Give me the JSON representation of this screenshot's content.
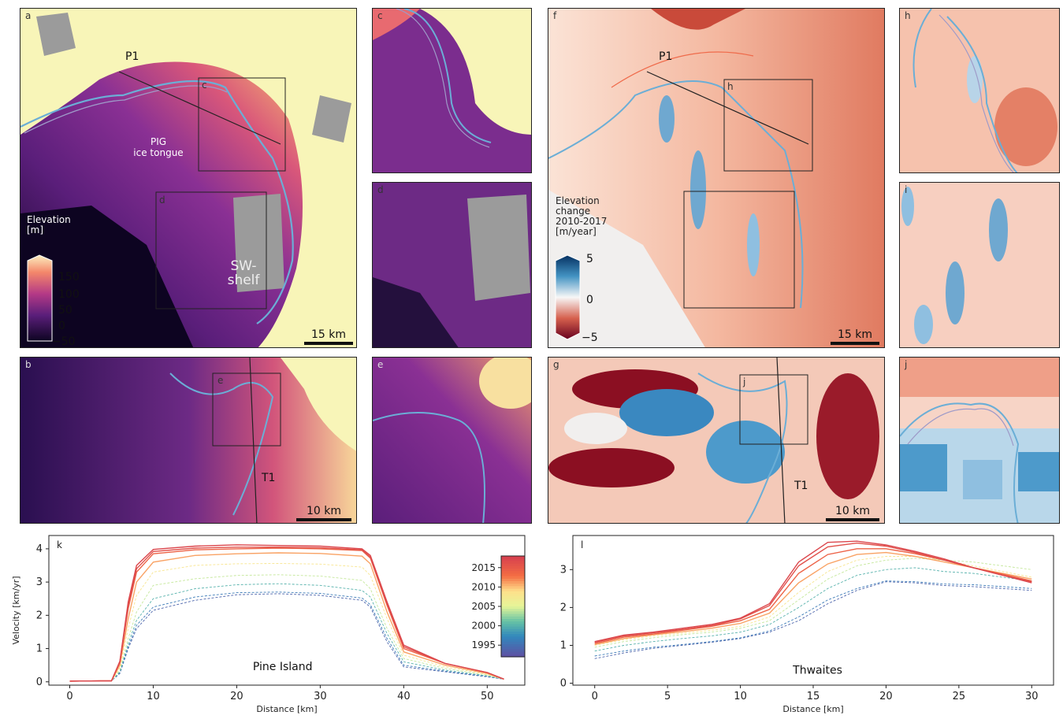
{
  "panels": {
    "a": {
      "label": "a",
      "p1": "P1",
      "pig": "PIG\nice tongue",
      "sw": "SW-\nshelf",
      "box_c": "c",
      "box_d": "d",
      "cb_title": "Elevation\n[m]",
      "cb_ticks": [
        "150",
        "100",
        "50",
        "0",
        "−50"
      ],
      "scale": "15 km"
    },
    "b": {
      "label": "b",
      "box_e": "e",
      "t1": "T1",
      "scale": "10 km"
    },
    "c": {
      "label": "c"
    },
    "d": {
      "label": "d"
    },
    "e": {
      "label": "e"
    },
    "f": {
      "label": "f",
      "p1": "P1",
      "box_h": "h",
      "cb_title": "Elevation\nchange\n2010-2017\n[m/year]",
      "cb_ticks": [
        "5",
        "0",
        "−5"
      ],
      "scale": "15 km"
    },
    "g": {
      "label": "g",
      "box_j": "j",
      "t1": "T1",
      "scale": "10 km"
    },
    "h": {
      "label": "h"
    },
    "i": {
      "label": "i"
    },
    "j": {
      "label": "j"
    }
  },
  "colors": {
    "elev_low": "#0d0421",
    "elev_mid": "#7b2d8e",
    "elev_high": "#f07847",
    "elev_top": "#f8f5b8",
    "change_pos": "#2166ac",
    "change_zero": "#f7f7f7",
    "change_neg": "#b2182b",
    "nodata": "#999999",
    "groundline_a": "#6baed6",
    "groundline_b": "#9e9ac8"
  },
  "chart_data": [
    {
      "type": "line",
      "panel_label": "k",
      "annotation": "Pine Island",
      "xlabel": "Distance [km]",
      "ylabel": "Velocity [km/yr]",
      "xlim": [
        -2.5,
        54.5
      ],
      "ylim": [
        -0.1,
        4.4
      ],
      "xticks": [
        "0",
        "10",
        "20",
        "30",
        "40",
        "50"
      ],
      "yticks": [
        "0",
        "1",
        "2",
        "3",
        "4"
      ],
      "colorbar": {
        "ticks": [
          "2015",
          "2010",
          "2005",
          "2000",
          "1995"
        ],
        "range": [
          1992,
          2018
        ]
      },
      "series": [
        {
          "year": 1994,
          "x": [
            0,
            5,
            6,
            7,
            8,
            10,
            15,
            20,
            25,
            30,
            35,
            36,
            38,
            40,
            45,
            50,
            52
          ],
          "values": [
            0.02,
            0.03,
            0.25,
            1.0,
            1.6,
            2.15,
            2.45,
            2.62,
            2.65,
            2.6,
            2.45,
            2.25,
            1.2,
            0.45,
            0.3,
            0.15,
            0.08
          ]
        },
        {
          "year": 1996,
          "x": [
            0,
            5,
            6,
            7,
            8,
            10,
            15,
            20,
            25,
            30,
            35,
            36,
            38,
            40,
            45,
            50,
            52
          ],
          "values": [
            0.02,
            0.03,
            0.27,
            1.05,
            1.7,
            2.25,
            2.55,
            2.68,
            2.7,
            2.66,
            2.52,
            2.32,
            1.3,
            0.5,
            0.32,
            0.16,
            0.08
          ]
        },
        {
          "year": 2000,
          "x": [
            0,
            5,
            6,
            7,
            8,
            10,
            15,
            20,
            25,
            30,
            35,
            36,
            38,
            40,
            45,
            50,
            52
          ],
          "values": [
            0.02,
            0.03,
            0.3,
            1.15,
            1.85,
            2.5,
            2.8,
            2.92,
            2.95,
            2.9,
            2.75,
            2.55,
            1.45,
            0.6,
            0.35,
            0.18,
            0.08
          ]
        },
        {
          "year": 2004,
          "x": [
            0,
            5,
            6,
            7,
            8,
            10,
            15,
            20,
            25,
            30,
            35,
            36,
            38,
            40,
            45,
            50,
            52
          ],
          "values": [
            0.02,
            0.03,
            0.35,
            1.3,
            2.1,
            2.9,
            3.1,
            3.2,
            3.22,
            3.18,
            3.05,
            2.8,
            1.6,
            0.7,
            0.4,
            0.2,
            0.08
          ]
        },
        {
          "year": 2008,
          "x": [
            0,
            5,
            6,
            7,
            8,
            10,
            15,
            20,
            25,
            30,
            35,
            36,
            38,
            40,
            45,
            50,
            52
          ],
          "values": [
            0.02,
            0.03,
            0.42,
            1.6,
            2.6,
            3.3,
            3.5,
            3.55,
            3.56,
            3.54,
            3.45,
            3.2,
            1.9,
            0.8,
            0.45,
            0.22,
            0.08
          ]
        },
        {
          "year": 2011,
          "x": [
            0,
            5,
            6,
            7,
            8,
            10,
            15,
            20,
            25,
            30,
            35,
            36,
            38,
            40,
            45,
            50,
            52
          ],
          "values": [
            0.02,
            0.03,
            0.5,
            1.9,
            3.0,
            3.6,
            3.8,
            3.85,
            3.88,
            3.86,
            3.78,
            3.55,
            2.1,
            0.9,
            0.5,
            0.25,
            0.08
          ]
        },
        {
          "year": 2014,
          "x": [
            0,
            5,
            6,
            7,
            8,
            10,
            15,
            20,
            25,
            30,
            35,
            36,
            38,
            40,
            45,
            50,
            52
          ],
          "values": [
            0.02,
            0.03,
            0.58,
            2.2,
            3.3,
            3.85,
            3.97,
            4.0,
            4.02,
            4.0,
            3.95,
            3.72,
            2.3,
            1.0,
            0.55,
            0.28,
            0.08
          ]
        },
        {
          "year": 2016,
          "x": [
            0,
            5,
            6,
            7,
            8,
            10,
            15,
            20,
            25,
            30,
            35,
            36,
            38,
            40,
            45,
            50,
            52
          ],
          "values": [
            0.02,
            0.03,
            0.6,
            2.3,
            3.4,
            3.92,
            4.02,
            4.05,
            4.05,
            4.03,
            3.97,
            3.75,
            2.35,
            1.05,
            0.55,
            0.28,
            0.08
          ]
        },
        {
          "year": 2017,
          "x": [
            0,
            5,
            6,
            7,
            8,
            10,
            15,
            20,
            25,
            30,
            35,
            36,
            38,
            40,
            45,
            50,
            52
          ],
          "values": [
            0.02,
            0.03,
            0.62,
            2.4,
            3.5,
            3.98,
            4.08,
            4.12,
            4.1,
            4.08,
            4.0,
            3.8,
            2.4,
            1.1,
            0.55,
            0.28,
            0.08
          ]
        }
      ]
    },
    {
      "type": "line",
      "panel_label": "l",
      "annotation": "Thwaites",
      "xlabel": "Distance [km]",
      "ylabel": "",
      "xlim": [
        -1.5,
        31.5
      ],
      "ylim": [
        -0.05,
        3.9
      ],
      "xticks": [
        "0",
        "5",
        "10",
        "15",
        "20",
        "25",
        "30"
      ],
      "yticks": [
        "0",
        "1",
        "2",
        "3"
      ],
      "series": [
        {
          "year": 1994,
          "x": [
            0,
            2,
            4,
            6,
            8,
            10,
            12,
            14,
            16,
            18,
            20,
            22,
            24,
            26,
            28,
            30
          ],
          "values": [
            0.65,
            0.8,
            0.92,
            1.0,
            1.08,
            1.18,
            1.35,
            1.65,
            2.1,
            2.45,
            2.68,
            2.65,
            2.58,
            2.55,
            2.5,
            2.45
          ]
        },
        {
          "year": 1996,
          "x": [
            0,
            2,
            4,
            6,
            8,
            10,
            12,
            14,
            16,
            18,
            20,
            22,
            24,
            26,
            28,
            30
          ],
          "values": [
            0.72,
            0.85,
            0.95,
            1.02,
            1.1,
            1.2,
            1.38,
            1.75,
            2.2,
            2.5,
            2.7,
            2.68,
            2.62,
            2.6,
            2.55,
            2.5
          ]
        },
        {
          "year": 2000,
          "x": [
            0,
            2,
            4,
            6,
            8,
            10,
            12,
            14,
            16,
            18,
            20,
            22,
            24,
            26,
            28,
            30
          ],
          "values": [
            0.85,
            1.0,
            1.1,
            1.18,
            1.25,
            1.35,
            1.55,
            2.0,
            2.5,
            2.85,
            3.0,
            3.05,
            2.95,
            2.9,
            2.8,
            2.7
          ]
        },
        {
          "year": 2004,
          "x": [
            0,
            2,
            4,
            6,
            8,
            10,
            12,
            14,
            16,
            18,
            20,
            22,
            24,
            26,
            28,
            30
          ],
          "values": [
            0.95,
            1.1,
            1.2,
            1.28,
            1.35,
            1.45,
            1.65,
            2.2,
            2.75,
            3.1,
            3.25,
            3.3,
            3.25,
            3.2,
            3.1,
            3.0
          ]
        },
        {
          "year": 2008,
          "x": [
            0,
            2,
            4,
            6,
            8,
            10,
            12,
            14,
            16,
            18,
            20,
            22,
            24,
            26,
            28,
            30
          ],
          "values": [
            1.0,
            1.15,
            1.25,
            1.32,
            1.4,
            1.5,
            1.75,
            2.4,
            2.95,
            3.25,
            3.35,
            3.35,
            3.25,
            3.1,
            2.95,
            2.8
          ]
        },
        {
          "year": 2011,
          "x": [
            0,
            2,
            4,
            6,
            8,
            10,
            12,
            14,
            16,
            18,
            20,
            22,
            24,
            26,
            28,
            30
          ],
          "values": [
            1.02,
            1.18,
            1.28,
            1.36,
            1.45,
            1.58,
            1.85,
            2.65,
            3.15,
            3.4,
            3.45,
            3.35,
            3.2,
            3.05,
            2.9,
            2.75
          ]
        },
        {
          "year": 2014,
          "x": [
            0,
            2,
            4,
            6,
            8,
            10,
            12,
            14,
            16,
            18,
            20,
            22,
            24,
            26,
            28,
            30
          ],
          "values": [
            1.05,
            1.22,
            1.3,
            1.4,
            1.5,
            1.65,
            1.95,
            2.9,
            3.4,
            3.55,
            3.55,
            3.42,
            3.25,
            3.05,
            2.88,
            2.7
          ]
        },
        {
          "year": 2016,
          "x": [
            0,
            2,
            4,
            6,
            8,
            10,
            12,
            14,
            16,
            18,
            20,
            22,
            24,
            26,
            28,
            30
          ],
          "values": [
            1.08,
            1.25,
            1.33,
            1.42,
            1.52,
            1.7,
            2.05,
            3.1,
            3.6,
            3.7,
            3.62,
            3.45,
            3.25,
            3.05,
            2.85,
            2.68
          ]
        },
        {
          "year": 2017,
          "x": [
            0,
            2,
            4,
            6,
            8,
            10,
            12,
            14,
            16,
            18,
            20,
            22,
            24,
            26,
            28,
            30
          ],
          "values": [
            1.1,
            1.27,
            1.35,
            1.45,
            1.55,
            1.72,
            2.1,
            3.2,
            3.72,
            3.75,
            3.65,
            3.48,
            3.28,
            3.05,
            2.85,
            2.65
          ]
        }
      ]
    }
  ]
}
